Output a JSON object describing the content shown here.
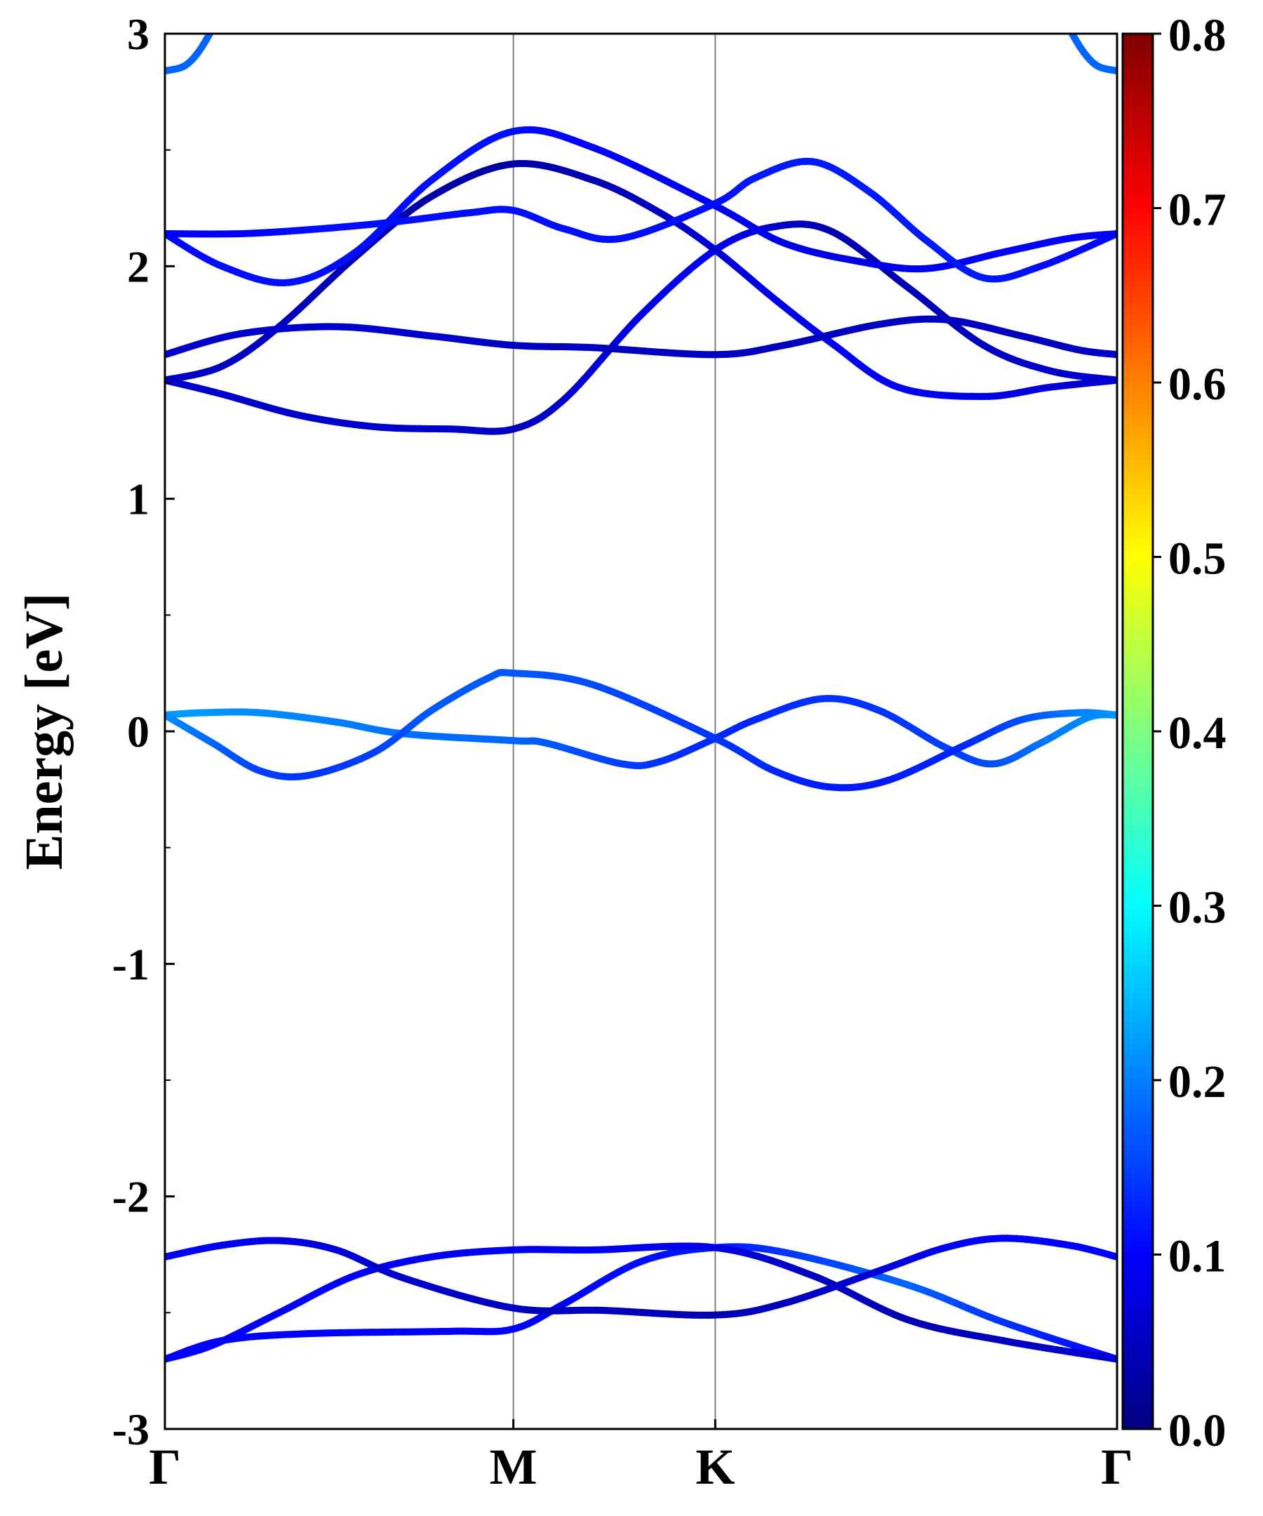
{
  "chart_data": {
    "type": "line",
    "title": "",
    "ylabel": "Energy [eV]",
    "xlabel": "",
    "ylim": [
      -3,
      3
    ],
    "yticks": [
      -3,
      -2,
      -1,
      0,
      1,
      2,
      3
    ],
    "ytick_labels": [
      "-3",
      "-2",
      "-1",
      "0",
      "1",
      "2",
      "3"
    ],
    "x_domain": [
      0,
      1
    ],
    "kpoints": [
      {
        "label": "Γ",
        "x": 0.0
      },
      {
        "label": "M",
        "x": 0.366
      },
      {
        "label": "K",
        "x": 0.578
      },
      {
        "label": "Γ",
        "x": 1.0
      }
    ],
    "colorbar": {
      "colormap": "jet",
      "range": [
        0.0,
        0.8
      ],
      "ticks": [
        "0.0",
        "0.1",
        "0.2",
        "0.3",
        "0.4",
        "0.5",
        "0.6",
        "0.7",
        "0.8"
      ],
      "stops": [
        "#00007f",
        "#0000ff",
        "#007fff",
        "#00ffff",
        "#7fff7f",
        "#ffff00",
        "#ff7f00",
        "#ff0000",
        "#7f0000"
      ]
    },
    "series": [
      {
        "points": [
          [
            0,
            -2.7
          ],
          [
            0.06,
            -2.62
          ],
          [
            0.15,
            -2.59
          ],
          [
            0.3,
            -2.58
          ],
          [
            0.366,
            -2.57
          ],
          [
            0.42,
            -2.46
          ],
          [
            0.5,
            -2.28
          ],
          [
            0.578,
            -2.22
          ],
          [
            0.65,
            -2.24
          ],
          [
            0.78,
            -2.38
          ],
          [
            0.88,
            -2.54
          ],
          [
            1.0,
            -2.7
          ]
        ],
        "weights": [
          0.1,
          0.1,
          0.1,
          0.1,
          0.1,
          0.1,
          0.11,
          0.12,
          0.14,
          0.18,
          0.14,
          0.1
        ]
      },
      {
        "points": [
          [
            0,
            -2.7
          ],
          [
            0.05,
            -2.64
          ],
          [
            0.12,
            -2.5
          ],
          [
            0.2,
            -2.34
          ],
          [
            0.28,
            -2.26
          ],
          [
            0.366,
            -2.23
          ],
          [
            0.45,
            -2.23
          ],
          [
            0.578,
            -2.22
          ],
          [
            0.68,
            -2.34
          ],
          [
            0.78,
            -2.53
          ],
          [
            0.88,
            -2.62
          ],
          [
            1.0,
            -2.7
          ]
        ],
        "weights": [
          0.1,
          0.1,
          0.1,
          0.1,
          0.09,
          0.09,
          0.09,
          0.08,
          0.05,
          0.04,
          0.05,
          0.07
        ]
      },
      {
        "points": [
          [
            0,
            -2.26
          ],
          [
            0.06,
            -2.21
          ],
          [
            0.12,
            -2.19
          ],
          [
            0.18,
            -2.23
          ],
          [
            0.25,
            -2.35
          ],
          [
            0.366,
            -2.48
          ],
          [
            0.46,
            -2.49
          ],
          [
            0.578,
            -2.51
          ],
          [
            0.65,
            -2.46
          ],
          [
            0.75,
            -2.32
          ],
          [
            0.82,
            -2.22
          ],
          [
            0.88,
            -2.18
          ],
          [
            0.95,
            -2.21
          ],
          [
            1.0,
            -2.26
          ]
        ],
        "weights": [
          0.1,
          0.09,
          0.08,
          0.07,
          0.06,
          0.05,
          0.05,
          0.04,
          0.05,
          0.07,
          0.09,
          0.1,
          0.1,
          0.1
        ]
      },
      {
        "points": [
          [
            0,
            0.07
          ],
          [
            0.04,
            0.08
          ],
          [
            0.1,
            0.08
          ],
          [
            0.18,
            0.04
          ],
          [
            0.25,
            -0.01
          ],
          [
            0.366,
            -0.04
          ],
          [
            0.4,
            -0.05
          ],
          [
            0.48,
            -0.14
          ],
          [
            0.52,
            -0.13
          ],
          [
            0.578,
            -0.03
          ],
          [
            0.62,
            0.05
          ],
          [
            0.69,
            0.14
          ],
          [
            0.75,
            0.09
          ],
          [
            0.82,
            -0.07
          ],
          [
            0.87,
            -0.14
          ],
          [
            0.92,
            -0.05
          ],
          [
            0.97,
            0.06
          ],
          [
            1.0,
            0.07
          ]
        ],
        "weights": [
          0.22,
          0.22,
          0.21,
          0.2,
          0.19,
          0.18,
          0.17,
          0.15,
          0.14,
          0.13,
          0.13,
          0.14,
          0.14,
          0.15,
          0.16,
          0.19,
          0.21,
          0.22
        ]
      },
      {
        "points": [
          [
            0,
            0.07
          ],
          [
            0.05,
            -0.05
          ],
          [
            0.1,
            -0.17
          ],
          [
            0.15,
            -0.19
          ],
          [
            0.22,
            -0.09
          ],
          [
            0.28,
            0.09
          ],
          [
            0.34,
            0.23
          ],
          [
            0.366,
            0.25
          ],
          [
            0.45,
            0.2
          ],
          [
            0.578,
            -0.03
          ],
          [
            0.64,
            -0.17
          ],
          [
            0.7,
            -0.24
          ],
          [
            0.76,
            -0.21
          ],
          [
            0.84,
            -0.06
          ],
          [
            0.9,
            0.05
          ],
          [
            0.96,
            0.08
          ],
          [
            1.0,
            0.07
          ]
        ],
        "weights": [
          0.22,
          0.18,
          0.15,
          0.14,
          0.15,
          0.17,
          0.17,
          0.17,
          0.16,
          0.14,
          0.13,
          0.12,
          0.12,
          0.13,
          0.16,
          0.2,
          0.22
        ]
      },
      {
        "points": [
          [
            0,
            1.51
          ],
          [
            0.06,
            1.45
          ],
          [
            0.14,
            1.36
          ],
          [
            0.22,
            1.31
          ],
          [
            0.3,
            1.3
          ],
          [
            0.366,
            1.3
          ],
          [
            0.42,
            1.43
          ],
          [
            0.5,
            1.79
          ],
          [
            0.578,
            2.07
          ],
          [
            0.64,
            2.17
          ],
          [
            0.7,
            2.15
          ],
          [
            0.78,
            1.91
          ],
          [
            0.86,
            1.66
          ],
          [
            0.93,
            1.55
          ],
          [
            1.0,
            1.51
          ]
        ],
        "weights": [
          0.06,
          0.06,
          0.06,
          0.06,
          0.06,
          0.05,
          0.06,
          0.08,
          0.09,
          0.06,
          0.04,
          0.04,
          0.05,
          0.06,
          0.06
        ]
      },
      {
        "points": [
          [
            0,
            1.51
          ],
          [
            0.06,
            1.57
          ],
          [
            0.12,
            1.74
          ],
          [
            0.2,
            2.04
          ],
          [
            0.28,
            2.3
          ],
          [
            0.366,
            2.44
          ],
          [
            0.45,
            2.37
          ],
          [
            0.52,
            2.23
          ],
          [
            0.578,
            2.07
          ],
          [
            0.64,
            1.86
          ],
          [
            0.7,
            1.67
          ],
          [
            0.77,
            1.48
          ],
          [
            0.86,
            1.44
          ],
          [
            0.93,
            1.48
          ],
          [
            1.0,
            1.51
          ]
        ],
        "weights": [
          0.06,
          0.05,
          0.05,
          0.04,
          0.03,
          0.03,
          0.04,
          0.05,
          0.07,
          0.08,
          0.09,
          0.09,
          0.08,
          0.07,
          0.06
        ]
      },
      {
        "points": [
          [
            0,
            1.62
          ],
          [
            0.08,
            1.71
          ],
          [
            0.18,
            1.74
          ],
          [
            0.28,
            1.7
          ],
          [
            0.366,
            1.66
          ],
          [
            0.45,
            1.65
          ],
          [
            0.578,
            1.62
          ],
          [
            0.65,
            1.66
          ],
          [
            0.75,
            1.75
          ],
          [
            0.82,
            1.77
          ],
          [
            0.9,
            1.7
          ],
          [
            0.96,
            1.64
          ],
          [
            1.0,
            1.62
          ]
        ],
        "weights": [
          0.06,
          0.06,
          0.06,
          0.06,
          0.05,
          0.05,
          0.05,
          0.05,
          0.05,
          0.05,
          0.05,
          0.05,
          0.06
        ]
      },
      {
        "points": [
          [
            0,
            2.14
          ],
          [
            0.06,
            2.0
          ],
          [
            0.13,
            1.93
          ],
          [
            0.2,
            2.06
          ],
          [
            0.28,
            2.37
          ],
          [
            0.366,
            2.58
          ],
          [
            0.45,
            2.51
          ],
          [
            0.578,
            2.26
          ],
          [
            0.65,
            2.1
          ],
          [
            0.73,
            2.02
          ],
          [
            0.8,
            1.99
          ],
          [
            0.88,
            2.06
          ],
          [
            0.95,
            2.12
          ],
          [
            1.0,
            2.14
          ]
        ],
        "weights": [
          0.1,
          0.11,
          0.11,
          0.11,
          0.11,
          0.11,
          0.1,
          0.09,
          0.08,
          0.08,
          0.09,
          0.1,
          0.1,
          0.1
        ]
      },
      {
        "points": [
          [
            0,
            2.14
          ],
          [
            0.08,
            2.14
          ],
          [
            0.16,
            2.16
          ],
          [
            0.24,
            2.19
          ],
          [
            0.32,
            2.23
          ],
          [
            0.366,
            2.24
          ],
          [
            0.42,
            2.16
          ],
          [
            0.48,
            2.12
          ],
          [
            0.578,
            2.27
          ],
          [
            0.62,
            2.38
          ],
          [
            0.68,
            2.45
          ],
          [
            0.74,
            2.32
          ],
          [
            0.8,
            2.11
          ],
          [
            0.86,
            1.95
          ],
          [
            0.92,
            2.0
          ],
          [
            1.0,
            2.14
          ]
        ],
        "weights": [
          0.1,
          0.1,
          0.11,
          0.11,
          0.11,
          0.11,
          0.11,
          0.11,
          0.11,
          0.12,
          0.12,
          0.12,
          0.12,
          0.12,
          0.11,
          0.1
        ]
      },
      {
        "points": [
          [
            0,
            2.84
          ],
          [
            0.02,
            2.86
          ],
          [
            0.035,
            2.92
          ],
          [
            0.05,
            3.02
          ]
        ],
        "weights": [
          0.18,
          0.18,
          0.18,
          0.18
        ]
      },
      {
        "points": [
          [
            1.0,
            2.84
          ],
          [
            0.98,
            2.86
          ],
          [
            0.965,
            2.92
          ],
          [
            0.95,
            3.02
          ]
        ],
        "weights": [
          0.18,
          0.18,
          0.18,
          0.18
        ]
      }
    ]
  }
}
